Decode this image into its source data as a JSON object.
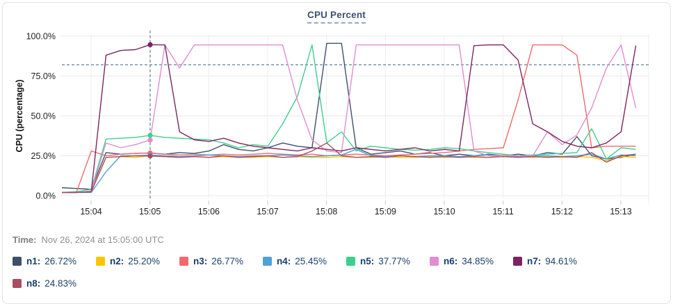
{
  "title": "CPU Percent",
  "time_note": {
    "label": "Time:",
    "value": "Nov 26, 2024 at 15:05:00 UTC"
  },
  "legend": [
    {
      "label": "n1:",
      "value": "26.72%",
      "color": "#3f4f6b"
    },
    {
      "label": "n2:",
      "value": "25.20%",
      "color": "#fdc500"
    },
    {
      "label": "n3:",
      "value": "26.77%",
      "color": "#f3696e"
    },
    {
      "label": "n4:",
      "value": "25.45%",
      "color": "#4da2d9"
    },
    {
      "label": "n5:",
      "value": "37.77%",
      "color": "#3bd08d"
    },
    {
      "label": "n6:",
      "value": "34.85%",
      "color": "#e08dd1"
    },
    {
      "label": "n7:",
      "value": "94.61%",
      "color": "#7d2360"
    },
    {
      "label": "n8:",
      "value": "24.83%",
      "color": "#aa4d63"
    }
  ],
  "chart_data": {
    "type": "line",
    "title": "CPU Percent",
    "xlabel": "",
    "ylabel": "CPU (percentage)",
    "ylim": [
      0,
      100
    ],
    "yticks": [
      0,
      25,
      50,
      75,
      100
    ],
    "ytick_labels": [
      "0.0%",
      "25.0%",
      "50.0%",
      "75.0%",
      "100.0%"
    ],
    "xtick_labels": [
      "15:04",
      "15:05",
      "15:06",
      "15:07",
      "15:08",
      "15:09",
      "15:10",
      "15:11",
      "15:12",
      "15:13"
    ],
    "grid": true,
    "legend_position": "bottom",
    "threshold": 82,
    "crosshair_time": "15:05:00",
    "crosshair_index": 6,
    "x_times": [
      "15:03:30",
      "15:03:45",
      "15:04:00",
      "15:04:15",
      "15:04:30",
      "15:04:45",
      "15:05:00",
      "15:05:15",
      "15:05:30",
      "15:05:45",
      "15:06:00",
      "15:06:15",
      "15:06:30",
      "15:06:45",
      "15:07:00",
      "15:07:15",
      "15:07:30",
      "15:07:45",
      "15:08:00",
      "15:08:15",
      "15:08:30",
      "15:08:45",
      "15:09:00",
      "15:09:15",
      "15:09:30",
      "15:09:45",
      "15:10:00",
      "15:10:15",
      "15:10:30",
      "15:10:45",
      "15:11:00",
      "15:11:15",
      "15:11:30",
      "15:11:45",
      "15:12:00",
      "15:12:15",
      "15:12:30",
      "15:12:45",
      "15:13:00",
      "15:13:15"
    ],
    "series": [
      {
        "name": "n1",
        "color": "#3f4f6b",
        "values": [
          5,
          4.5,
          4,
          27,
          26,
          26.5,
          26.72,
          26,
          27,
          26.5,
          28,
          32,
          29,
          28,
          30,
          33,
          31,
          30,
          95.5,
          95.5,
          30,
          26,
          27,
          28,
          26,
          27,
          25,
          26,
          25,
          26,
          25,
          26,
          25,
          27,
          26,
          37,
          25,
          23,
          24,
          26
        ]
      },
      {
        "name": "n2",
        "color": "#fdc500",
        "values": [
          2,
          2,
          2.5,
          24,
          24.5,
          24,
          25.2,
          24.5,
          24,
          24.5,
          24,
          24.5,
          24,
          24,
          24.5,
          24,
          24.5,
          24,
          24,
          24.5,
          24,
          24,
          24.5,
          24,
          24,
          24.5,
          24,
          24.5,
          24,
          24,
          25.5,
          24.5,
          24,
          24.5,
          24,
          24.5,
          24,
          22,
          24.5,
          24
        ]
      },
      {
        "name": "n3",
        "color": "#f3696e",
        "values": [
          2,
          2.5,
          28,
          25,
          26,
          26.5,
          26.77,
          26,
          25.5,
          26,
          25.5,
          26,
          25.5,
          26,
          26.5,
          26,
          25.5,
          26,
          25,
          25.5,
          26,
          25.5,
          25,
          25.5,
          26,
          26.5,
          27,
          28,
          29,
          29.5,
          30,
          60,
          94.5,
          94.5,
          94.5,
          88,
          30,
          31,
          31,
          31
        ]
      },
      {
        "name": "n4",
        "color": "#4da2d9",
        "values": [
          2,
          2,
          2,
          15,
          25,
          25,
          25.45,
          25,
          24.5,
          25,
          25.5,
          25,
          24.5,
          25,
          25,
          25.5,
          25,
          24.5,
          25,
          25.5,
          29,
          25,
          24.5,
          25,
          24.5,
          25,
          25,
          24.5,
          25,
          25.5,
          25,
          24.5,
          25,
          25,
          24.5,
          25,
          26,
          23,
          25.5,
          25
        ]
      },
      {
        "name": "n5",
        "color": "#3bd08d",
        "values": [
          2,
          2.5,
          4,
          35.5,
          36,
          36.5,
          37.77,
          36.5,
          36,
          35.5,
          35,
          33,
          30,
          32,
          31,
          45,
          62,
          94.5,
          33,
          40,
          28,
          31,
          30,
          29,
          28.5,
          29,
          30,
          29.5,
          28,
          27,
          26,
          25,
          25.5,
          26,
          26.5,
          27,
          42,
          23,
          30,
          29
        ]
      },
      {
        "name": "n6",
        "color": "#e08dd1",
        "values": [
          2,
          2,
          3,
          33,
          30,
          32,
          34.85,
          94.5,
          80,
          94.5,
          94.5,
          94.5,
          94.5,
          94.5,
          94.5,
          94.5,
          60,
          35,
          28,
          27,
          94.5,
          94.5,
          94.5,
          94.5,
          94.5,
          94.5,
          94.5,
          94.5,
          28,
          25,
          25,
          25,
          25,
          40,
          32,
          38,
          55,
          80,
          94.5,
          55
        ]
      },
      {
        "name": "n7",
        "color": "#7d2360",
        "values": [
          2,
          2,
          2.5,
          88,
          91,
          91.5,
          94.61,
          94.5,
          40,
          35,
          34,
          36,
          33,
          31,
          30,
          29,
          28,
          30,
          29,
          28,
          30,
          29,
          28,
          29,
          30,
          28,
          29,
          28,
          94,
          94.5,
          94.5,
          85,
          45,
          40,
          34,
          31,
          30,
          33,
          40,
          94
        ]
      },
      {
        "name": "n8",
        "color": "#aa4d63",
        "values": [
          2,
          2,
          2.5,
          24,
          24.5,
          25,
          24.83,
          24.5,
          24,
          24.5,
          24,
          25,
          24,
          24.5,
          25,
          24,
          24.5,
          28,
          33,
          25,
          24,
          24.5,
          24,
          25,
          24.5,
          24,
          24.5,
          24,
          24.5,
          24,
          24.5,
          24,
          24.5,
          24,
          24.5,
          24,
          27,
          21,
          25,
          26
        ]
      }
    ]
  }
}
